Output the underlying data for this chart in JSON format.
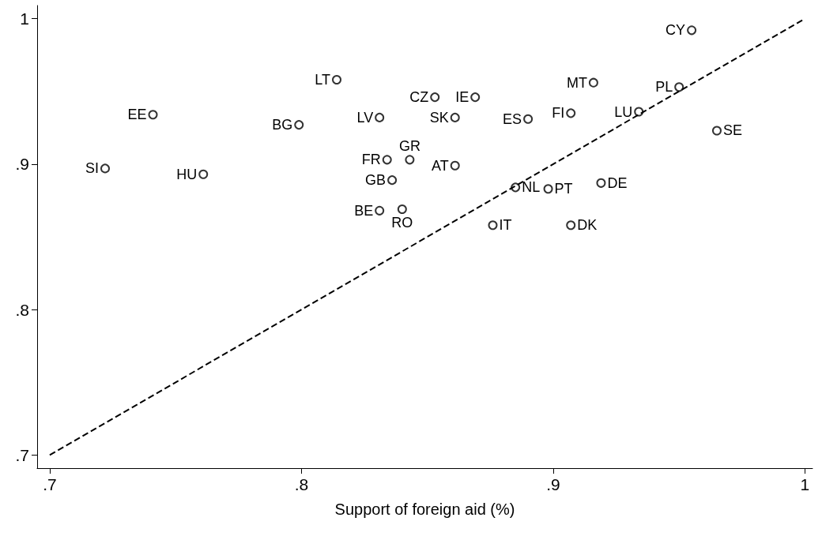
{
  "chart_data": {
    "type": "scatter",
    "xlabel": "Support of foreign aid (%)",
    "xlim": [
      0.695,
      1.003
    ],
    "ylim": [
      0.691,
      1.009
    ],
    "xticks": [
      {
        "value": 0.7,
        "label": ".7"
      },
      {
        "value": 0.8,
        "label": ".8"
      },
      {
        "value": 0.9,
        "label": ".9"
      },
      1
    ],
    "yticks": [
      {
        "value": 0.7,
        "label": ".7"
      },
      {
        "value": 0.8,
        "label": ".8"
      },
      {
        "value": 0.9,
        "label": ".9"
      },
      1
    ],
    "grid": false,
    "marker": "circle",
    "series": [
      {
        "color": "#000000",
        "x": [
          0.722,
          0.741,
          0.761,
          0.799,
          0.814,
          0.831,
          0.834,
          0.836,
          0.831,
          0.84,
          0.843,
          0.853,
          0.869,
          0.861,
          0.861,
          0.89,
          0.907,
          0.916,
          0.885,
          0.898,
          0.919,
          0.876,
          0.907,
          0.934,
          0.95,
          0.955,
          0.965
        ],
        "values": [
          0.897,
          0.934,
          0.893,
          0.927,
          0.958,
          0.932,
          0.903,
          0.889,
          0.868,
          0.869,
          0.903,
          0.946,
          0.946,
          0.932,
          0.899,
          0.931,
          0.935,
          0.956,
          0.884,
          0.883,
          0.887,
          0.858,
          0.858,
          0.936,
          0.953,
          0.992,
          0.923
        ]
      },
      {
        "type": "line",
        "color": "#000000",
        "marker": "none",
        "line_style": "dashed",
        "x": [
          0.7,
          1
        ],
        "values": [
          0.7,
          1
        ]
      }
    ],
    "annotations": [
      {
        "text": "SI",
        "x": 0.722,
        "y": 0.897
      },
      {
        "text": "EE",
        "x": 0.741,
        "y": 0.934
      },
      {
        "text": "HU",
        "x": 0.761,
        "y": 0.893
      },
      {
        "text": "BG",
        "x": 0.799,
        "y": 0.927
      },
      {
        "text": "LT",
        "x": 0.814,
        "y": 0.958
      },
      {
        "text": "LV",
        "x": 0.831,
        "y": 0.932
      },
      {
        "text": "FR",
        "x": 0.834,
        "y": 0.903
      },
      {
        "text": "GB",
        "x": 0.836,
        "y": 0.889
      },
      {
        "text": "BE",
        "x": 0.831,
        "y": 0.868
      },
      {
        "text": "RO",
        "x": 0.84,
        "y": 0.869
      },
      {
        "text": "GR",
        "x": 0.843,
        "y": 0.903
      },
      {
        "text": "CZ",
        "x": 0.853,
        "y": 0.946
      },
      {
        "text": "IE",
        "x": 0.869,
        "y": 0.946
      },
      {
        "text": "SK",
        "x": 0.861,
        "y": 0.932
      },
      {
        "text": "AT",
        "x": 0.861,
        "y": 0.899
      },
      {
        "text": "ES",
        "x": 0.89,
        "y": 0.931
      },
      {
        "text": "FI",
        "x": 0.907,
        "y": 0.935
      },
      {
        "text": "MT",
        "x": 0.916,
        "y": 0.956
      },
      {
        "text": "NL",
        "x": 0.885,
        "y": 0.884
      },
      {
        "text": "PT",
        "x": 0.898,
        "y": 0.883
      },
      {
        "text": "DE",
        "x": 0.919,
        "y": 0.887
      },
      {
        "text": "IT",
        "x": 0.876,
        "y": 0.858
      },
      {
        "text": "DK",
        "x": 0.907,
        "y": 0.858
      },
      {
        "text": "LU",
        "x": 0.934,
        "y": 0.936
      },
      {
        "text": "PL",
        "x": 0.95,
        "y": 0.953
      },
      {
        "text": "CY",
        "x": 0.955,
        "y": 0.992
      },
      {
        "text": "SE",
        "x": 0.965,
        "y": 0.923
      }
    ]
  }
}
